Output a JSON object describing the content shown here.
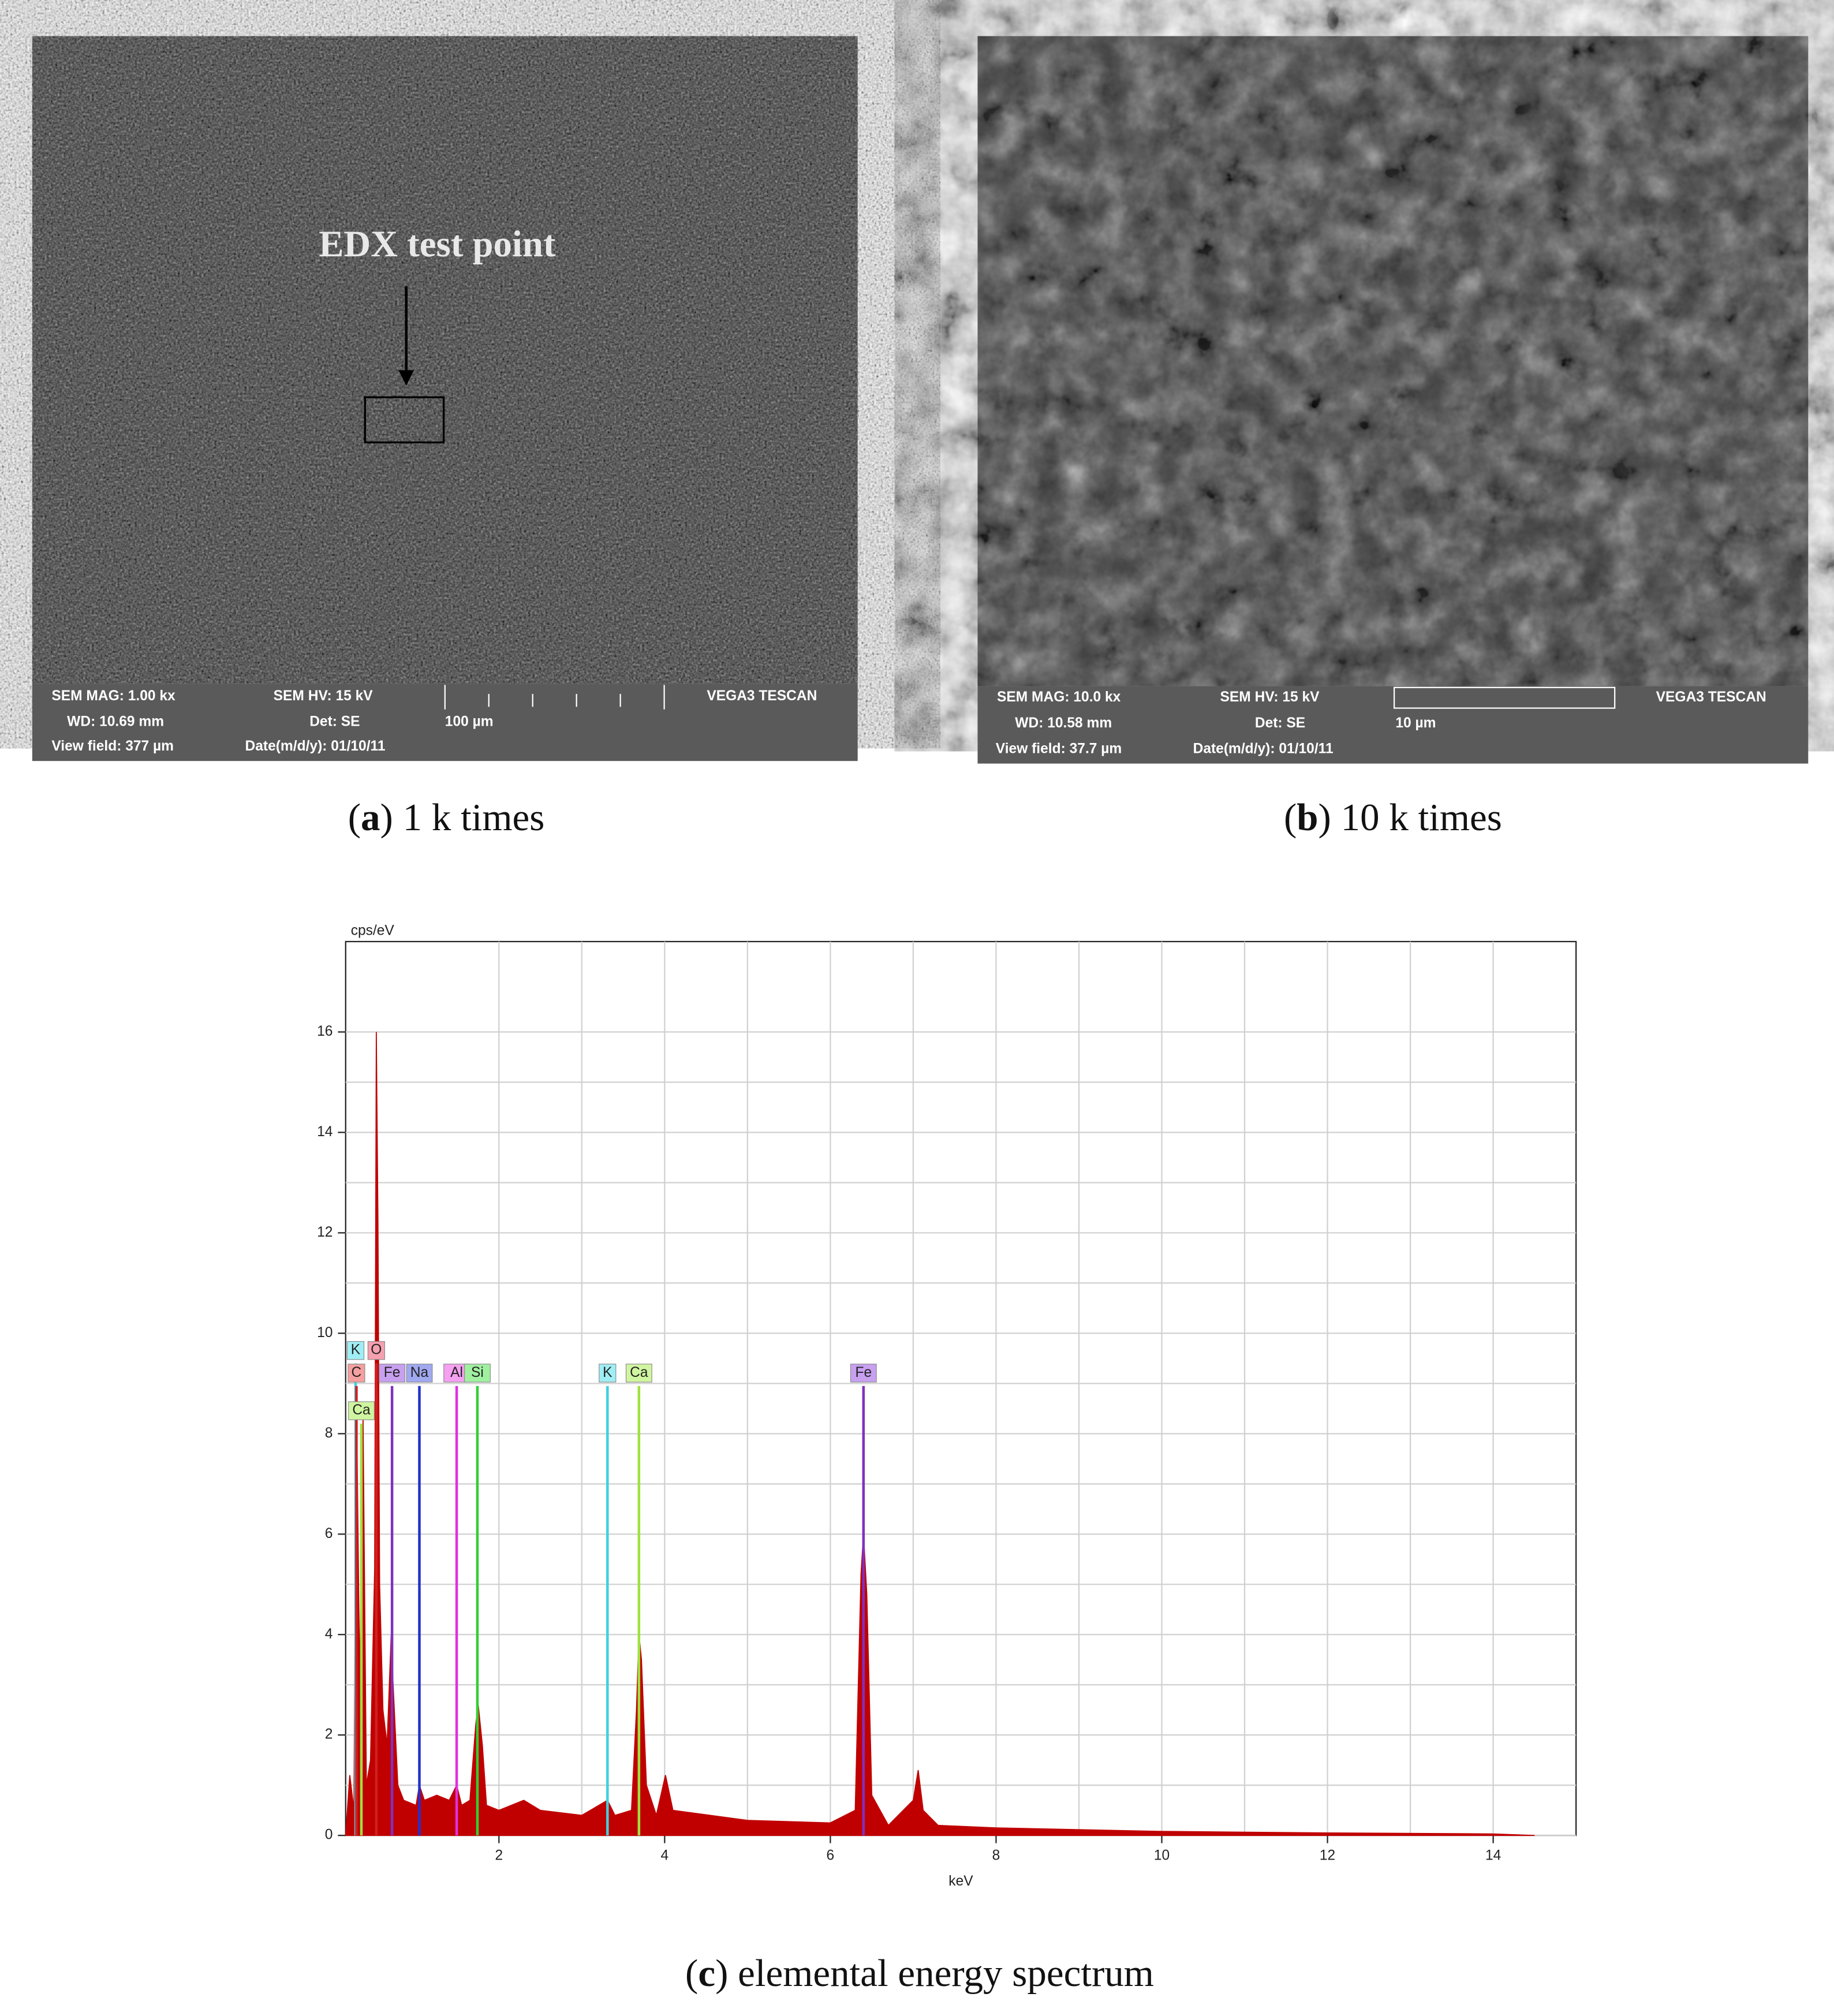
{
  "panels": [
    {
      "overlay": "EDX test point",
      "info": [
        "SEM MAG: 1.00 kx",
        "SEM HV: 15 kV",
        "VEGA3 TESCAN",
        "WD: 10.69 mm",
        "Det: SE",
        "100 µm",
        "View field: 377 µm",
        "Date(m/d/y): 01/10/11"
      ],
      "caption": [
        "(",
        "a",
        ") 1 k times"
      ]
    },
    {
      "info": [
        "SEM MAG: 10.0 kx",
        "SEM HV: 15 kV",
        "VEGA3 TESCAN",
        "WD: 10.58 mm",
        "Det: SE",
        "10 µm",
        "View field: 37.7 µm",
        "Date(m/d/y): 01/10/11"
      ],
      "caption": [
        "(",
        "b",
        ") 10 k times"
      ]
    }
  ],
  "chart_data": {
    "type": "area",
    "xlabel": "keV",
    "ylabel": "cps/eV",
    "color": "#c00000",
    "x": [
      0.15,
      0.2,
      0.25,
      0.28,
      0.32,
      0.36,
      0.4,
      0.45,
      0.5,
      0.52,
      0.54,
      0.56,
      0.6,
      0.65,
      0.7,
      0.72,
      0.78,
      0.85,
      1.0,
      1.04,
      1.1,
      1.25,
      1.4,
      1.49,
      1.55,
      1.65,
      1.72,
      1.75,
      1.8,
      1.85,
      2.0,
      2.3,
      2.5,
      3.0,
      3.31,
      3.4,
      3.6,
      3.66,
      3.69,
      3.72,
      3.78,
      3.9,
      4.01,
      4.1,
      5.0,
      6.0,
      6.3,
      6.37,
      6.4,
      6.44,
      6.5,
      6.7,
      7.0,
      7.06,
      7.12,
      7.3,
      8,
      10,
      12,
      14,
      14.5
    ],
    "values": [
      0,
      1.2,
      0.5,
      8.8,
      3,
      8.3,
      1,
      1.5,
      5.3,
      16,
      12.2,
      5,
      2.5,
      1.8,
      4,
      3.1,
      1,
      0.7,
      0.6,
      1.0,
      0.7,
      0.8,
      0.7,
      1.0,
      0.6,
      0.7,
      2.2,
      2.6,
      1.8,
      0.6,
      0.5,
      0.7,
      0.5,
      0.4,
      0.7,
      0.4,
      0.5,
      2.5,
      4.0,
      3.5,
      1,
      0.4,
      1.2,
      0.5,
      0.3,
      0.25,
      0.5,
      5.2,
      6.0,
      4.8,
      0.8,
      0.2,
      0.7,
      1.3,
      0.5,
      0.2,
      0.15,
      0.08,
      0.05,
      0.03,
      0
    ],
    "xlim": [
      0.15,
      15
    ],
    "ylim": [
      0,
      17.8
    ],
    "xticks": [
      2,
      4,
      6,
      8,
      10,
      12,
      14
    ],
    "yticks": [
      0,
      2,
      4,
      6,
      8,
      10,
      12,
      14,
      16
    ],
    "grid": true,
    "element_lines": [
      {
        "label": "K",
        "x": 0.27,
        "value": 9.4,
        "color": "#40d0e0",
        "label_color": "#a0eef5"
      },
      {
        "label": "O",
        "x": 0.52,
        "value": 9.4,
        "color": "#d02020",
        "label_color": "#f5a0b0"
      },
      {
        "label": "C",
        "x": 0.28,
        "value": 8.95,
        "color": "#d02020",
        "label_color": "#f5a0a0"
      },
      {
        "label": "Ca",
        "x": 0.34,
        "value": 8.2,
        "color": "#a0e040",
        "label_color": "#d0f5a0"
      },
      {
        "label": "Fe",
        "x": 0.71,
        "value": 8.95,
        "color": "#8030c0",
        "label_color": "#c8a0f0"
      },
      {
        "label": "Na",
        "x": 1.04,
        "value": 8.95,
        "color": "#2030d0",
        "label_color": "#a0a8f0"
      },
      {
        "label": "Al",
        "x": 1.49,
        "value": 8.95,
        "color": "#e030e0",
        "label_color": "#f5a0f0"
      },
      {
        "label": "Si",
        "x": 1.74,
        "value": 8.95,
        "color": "#30d030",
        "label_color": "#a0f0a0"
      },
      {
        "label": "K",
        "x": 3.31,
        "value": 8.95,
        "color": "#40d0e0",
        "label_color": "#a0eef5"
      },
      {
        "label": "Ca",
        "x": 3.69,
        "value": 8.95,
        "color": "#a0e040",
        "label_color": "#d0f5a0"
      },
      {
        "label": "Fe",
        "x": 6.4,
        "value": 8.95,
        "color": "#8030c0",
        "label_color": "#c8a0f0"
      }
    ],
    "caption": [
      "(",
      "c",
      ") elemental energy spectrum"
    ]
  }
}
